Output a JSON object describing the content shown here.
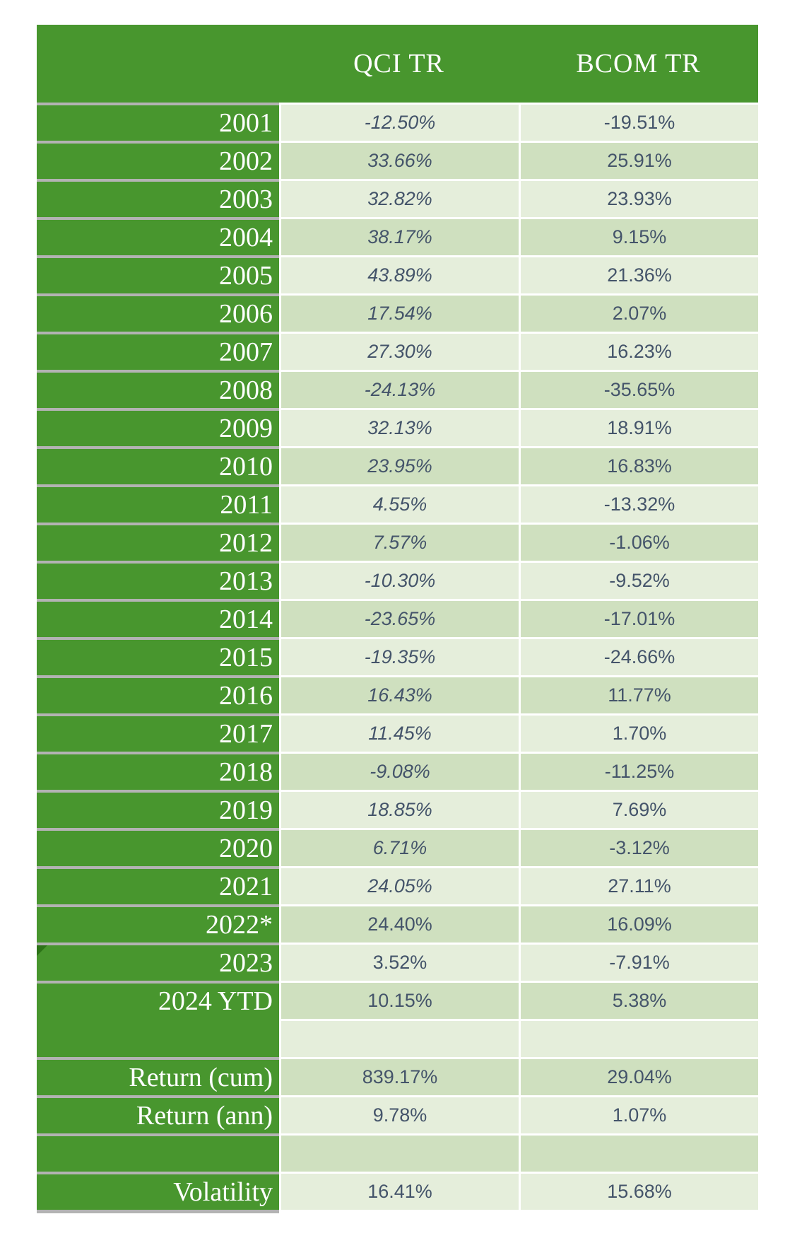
{
  "header": {
    "col_qci": "QCI TR",
    "col_bcom": "BCOM TR"
  },
  "rows": [
    {
      "label": "2001",
      "qci": "-12.50%",
      "bcom": "-19.51%",
      "shade": "light",
      "italic": true,
      "no_separator": false,
      "marker": false
    },
    {
      "label": "2002",
      "qci": "33.66%",
      "bcom": "25.91%",
      "shade": "dark",
      "italic": true,
      "no_separator": false,
      "marker": false
    },
    {
      "label": "2003",
      "qci": "32.82%",
      "bcom": "23.93%",
      "shade": "light",
      "italic": true,
      "no_separator": false,
      "marker": false
    },
    {
      "label": "2004",
      "qci": "38.17%",
      "bcom": "9.15%",
      "shade": "dark",
      "italic": true,
      "no_separator": false,
      "marker": false
    },
    {
      "label": "2005",
      "qci": "43.89%",
      "bcom": "21.36%",
      "shade": "light",
      "italic": true,
      "no_separator": false,
      "marker": false
    },
    {
      "label": "2006",
      "qci": "17.54%",
      "bcom": "2.07%",
      "shade": "dark",
      "italic": true,
      "no_separator": false,
      "marker": false
    },
    {
      "label": "2007",
      "qci": "27.30%",
      "bcom": "16.23%",
      "shade": "light",
      "italic": true,
      "no_separator": false,
      "marker": false
    },
    {
      "label": "2008",
      "qci": "-24.13%",
      "bcom": "-35.65%",
      "shade": "dark",
      "italic": true,
      "no_separator": false,
      "marker": false
    },
    {
      "label": "2009",
      "qci": "32.13%",
      "bcom": "18.91%",
      "shade": "light",
      "italic": true,
      "no_separator": false,
      "marker": false
    },
    {
      "label": "2010",
      "qci": "23.95%",
      "bcom": "16.83%",
      "shade": "dark",
      "italic": true,
      "no_separator": false,
      "marker": false
    },
    {
      "label": "2011",
      "qci": "4.55%",
      "bcom": "-13.32%",
      "shade": "light",
      "italic": true,
      "no_separator": false,
      "marker": false
    },
    {
      "label": "2012",
      "qci": "7.57%",
      "bcom": "-1.06%",
      "shade": "dark",
      "italic": true,
      "no_separator": false,
      "marker": false
    },
    {
      "label": "2013",
      "qci": "-10.30%",
      "bcom": "-9.52%",
      "shade": "light",
      "italic": true,
      "no_separator": false,
      "marker": false
    },
    {
      "label": "2014",
      "qci": "-23.65%",
      "bcom": "-17.01%",
      "shade": "dark",
      "italic": true,
      "no_separator": false,
      "marker": false
    },
    {
      "label": "2015",
      "qci": "-19.35%",
      "bcom": "-24.66%",
      "shade": "light",
      "italic": true,
      "no_separator": false,
      "marker": false
    },
    {
      "label": "2016",
      "qci": "16.43%",
      "bcom": "11.77%",
      "shade": "dark",
      "italic": true,
      "no_separator": false,
      "marker": false
    },
    {
      "label": "2017",
      "qci": "11.45%",
      "bcom": "1.70%",
      "shade": "light",
      "italic": true,
      "no_separator": false,
      "marker": false
    },
    {
      "label": "2018",
      "qci": "-9.08%",
      "bcom": "-11.25%",
      "shade": "dark",
      "italic": true,
      "no_separator": false,
      "marker": false
    },
    {
      "label": "2019",
      "qci": "18.85%",
      "bcom": "7.69%",
      "shade": "light",
      "italic": true,
      "no_separator": false,
      "marker": false
    },
    {
      "label": "2020",
      "qci": "6.71%",
      "bcom": "-3.12%",
      "shade": "dark",
      "italic": true,
      "no_separator": false,
      "marker": false
    },
    {
      "label": "2021",
      "qci": "24.05%",
      "bcom": "27.11%",
      "shade": "light",
      "italic": true,
      "no_separator": false,
      "marker": false
    },
    {
      "label": "2022*",
      "qci": "24.40%",
      "bcom": "16.09%",
      "shade": "dark",
      "italic": false,
      "no_separator": false,
      "marker": false
    },
    {
      "label": "2023",
      "qci": "3.52%",
      "bcom": "-7.91%",
      "shade": "light",
      "italic": false,
      "no_separator": false,
      "marker": true
    },
    {
      "label": "2024 YTD",
      "qci": "10.15%",
      "bcom": "5.38%",
      "shade": "dark",
      "italic": false,
      "no_separator": false,
      "marker": false
    },
    {
      "label": "",
      "qci": "",
      "bcom": "",
      "shade": "light",
      "italic": false,
      "no_separator": true,
      "marker": false
    },
    {
      "label": "Return (cum)",
      "qci": "839.17%",
      "bcom": "29.04%",
      "shade": "dark",
      "italic": false,
      "no_separator": false,
      "marker": false
    },
    {
      "label": "Return (ann)",
      "qci": "9.78%",
      "bcom": "1.07%",
      "shade": "light",
      "italic": false,
      "no_separator": false,
      "marker": false
    },
    {
      "label": "",
      "qci": "",
      "bcom": "",
      "shade": "dark",
      "italic": false,
      "no_separator": false,
      "marker": false
    },
    {
      "label": "Volatility",
      "qci": "16.41%",
      "bcom": "15.68%",
      "shade": "light",
      "italic": false,
      "no_separator": false,
      "marker": false
    }
  ],
  "colors": {
    "header_green": "#48962e",
    "label_green": "#48962e",
    "separator_gray": "#b3b3b3",
    "cell_light": "#e5eedb",
    "cell_dark": "#cfe0bf",
    "value_text": "#44546a",
    "label_text": "#ffffff",
    "corner_marker_green": "#2c7317"
  },
  "chart_data": {
    "type": "table",
    "columns": [
      "",
      "QCI TR",
      "BCOM TR"
    ],
    "rows": [
      [
        "2001",
        "-12.50%",
        "-19.51%"
      ],
      [
        "2002",
        "33.66%",
        "25.91%"
      ],
      [
        "2003",
        "32.82%",
        "23.93%"
      ],
      [
        "2004",
        "38.17%",
        "9.15%"
      ],
      [
        "2005",
        "43.89%",
        "21.36%"
      ],
      [
        "2006",
        "17.54%",
        "2.07%"
      ],
      [
        "2007",
        "27.30%",
        "16.23%"
      ],
      [
        "2008",
        "-24.13%",
        "-35.65%"
      ],
      [
        "2009",
        "32.13%",
        "18.91%"
      ],
      [
        "2010",
        "23.95%",
        "16.83%"
      ],
      [
        "2011",
        "4.55%",
        "-13.32%"
      ],
      [
        "2012",
        "7.57%",
        "-1.06%"
      ],
      [
        "2013",
        "-10.30%",
        "-9.52%"
      ],
      [
        "2014",
        "-23.65%",
        "-17.01%"
      ],
      [
        "2015",
        "-19.35%",
        "-24.66%"
      ],
      [
        "2016",
        "16.43%",
        "11.77%"
      ],
      [
        "2017",
        "11.45%",
        "1.70%"
      ],
      [
        "2018",
        "-9.08%",
        "-11.25%"
      ],
      [
        "2019",
        "18.85%",
        "7.69%"
      ],
      [
        "2020",
        "6.71%",
        "-3.12%"
      ],
      [
        "2021",
        "24.05%",
        "27.11%"
      ],
      [
        "2022*",
        "24.40%",
        "16.09%"
      ],
      [
        "2023",
        "3.52%",
        "-7.91%"
      ],
      [
        "2024 YTD",
        "10.15%",
        "5.38%"
      ],
      [
        "",
        "",
        ""
      ],
      [
        "Return (cum)",
        "839.17%",
        "29.04%"
      ],
      [
        "Return (ann)",
        "9.78%",
        "1.07%"
      ],
      [
        "",
        "",
        ""
      ],
      [
        "Volatility",
        "16.41%",
        "15.68%"
      ]
    ]
  }
}
